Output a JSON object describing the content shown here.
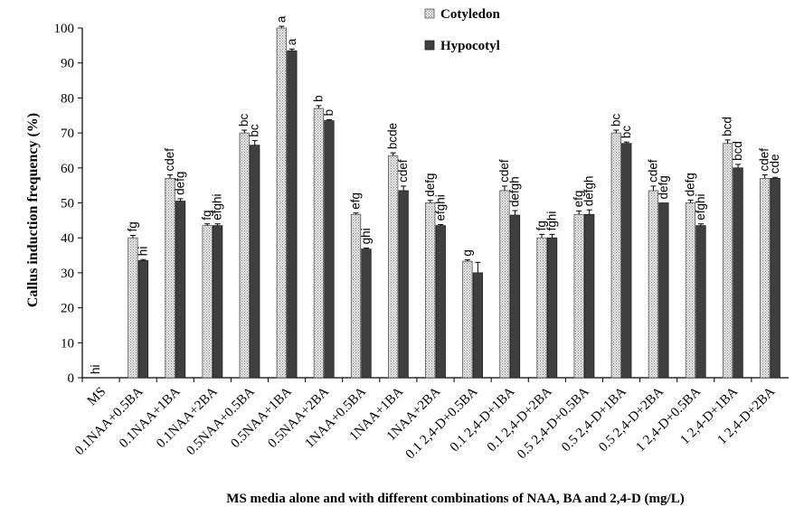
{
  "chart_data": {
    "type": "bar",
    "xlabel": "MS media alone and with different combinations of NAA, BA and 2,4-D  (mg/L)",
    "ylabel": "Callus induction frequency (%)",
    "ylim": [
      0,
      100
    ],
    "yticks": [
      "0",
      "10",
      "20",
      "30",
      "40",
      "50",
      "60",
      "70",
      "80",
      "90",
      "100"
    ],
    "grid": false,
    "legend_position": "top-center",
    "categories": [
      "MS",
      "0.1NAA+0.5BA",
      "0.1NAA+1BA",
      "0.1NAA+2BA",
      "0.5NAA+0.5BA",
      "0.5NAA+1BA",
      "0.5NAA+2BA",
      "1NAA+0.5BA",
      "1NAA+1BA",
      "1NAA+2BA",
      "0.1 2,4-D+0.5BA",
      "0.1 2,4-D+1BA",
      "0.1 2,4-D+2BA",
      "0.5 2,4-D+0.5BA",
      "0.5 2,4-D+1BA",
      "0.5 2,4-D+2BA",
      "1 2,4-D+0.5BA",
      "1 2,4-D+1BA",
      "1 2,4-D+2BA"
    ],
    "series": [
      {
        "name": "Cotyledon",
        "color": "#e8e8e8",
        "values": [
          0,
          40,
          57,
          43.5,
          70,
          100,
          77,
          46.7,
          63.5,
          50,
          33.3,
          53.5,
          40,
          46.7,
          70,
          53.5,
          50,
          67,
          57
        ],
        "errors": [
          0,
          0.7,
          1,
          0.5,
          0.8,
          0.5,
          0.8,
          0.4,
          0.8,
          0.7,
          0.4,
          1.3,
          1,
          1,
          0.8,
          1.3,
          0.8,
          1,
          1
        ],
        "labels": [
          "hi",
          "fg",
          "cdef",
          "fg",
          "bc",
          "a",
          "b",
          "efg",
          "bcde",
          "defg",
          "g",
          "cdef",
          "fg",
          "efg",
          "bc",
          "cdef",
          "defg",
          "bcd",
          "cdef"
        ]
      },
      {
        "name": "Hypocotyl",
        "color": "#3f3f3f",
        "values": [
          0,
          33.5,
          50.5,
          43.5,
          66.5,
          93.5,
          73.5,
          36.8,
          53.5,
          43.5,
          30,
          46.5,
          40,
          46.7,
          67,
          50,
          43.5,
          60,
          57
        ],
        "errors": [
          0,
          0.3,
          0.7,
          0.5,
          1.3,
          0.5,
          0.3,
          0.3,
          1.3,
          0.3,
          3,
          1.3,
          1,
          1.3,
          0.4,
          0,
          0.5,
          1,
          0.3
        ],
        "labels": [
          "",
          "hi",
          "defg",
          "efghi",
          "bc",
          "a",
          "b",
          "ghi",
          "cdef",
          "efghi",
          "",
          "defgh",
          "fghi",
          "defgh",
          "bc",
          "defg",
          "efghi",
          "bcd",
          "cde"
        ]
      }
    ]
  }
}
